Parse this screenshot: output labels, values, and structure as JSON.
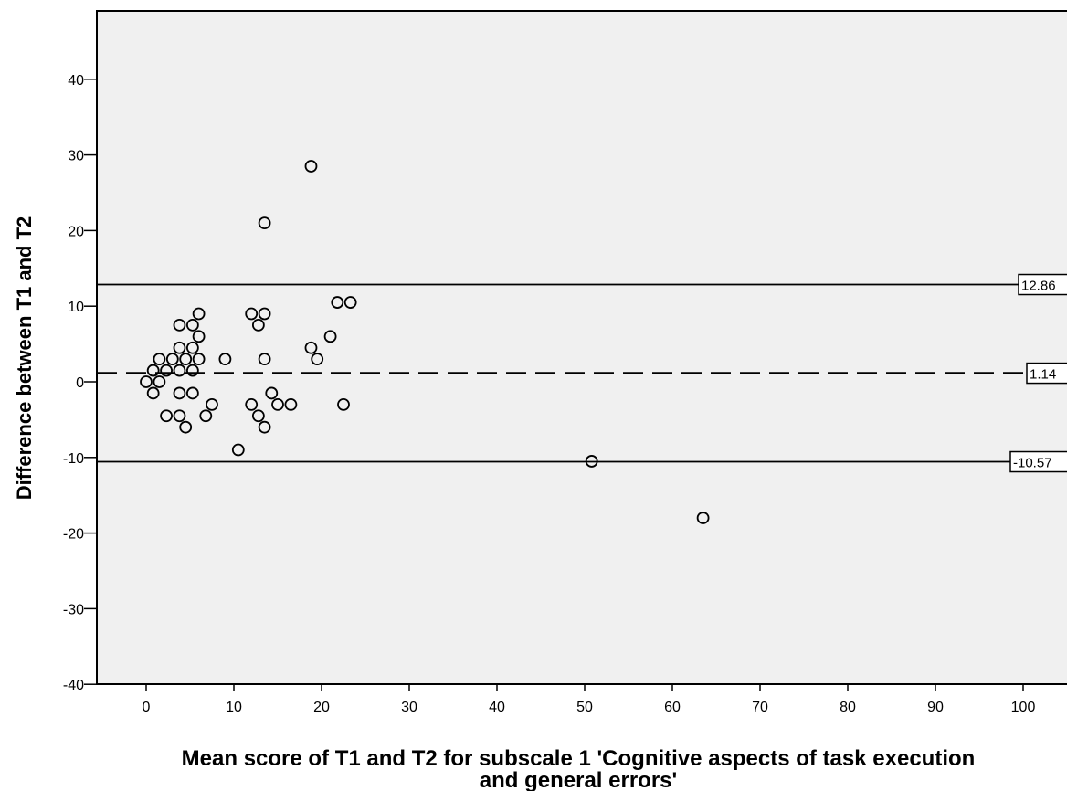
{
  "chart_data": {
    "type": "scatter",
    "title": "",
    "xlabel_lines": [
      "Mean score of T1 and T2 for subscale 1 'Cognitive aspects of task execution",
      "and general errors'"
    ],
    "ylabel": "Difference between T1 and T2",
    "xlim": [
      -5,
      105
    ],
    "ylim": [
      -40,
      49
    ],
    "x_ticks": [
      0,
      10,
      20,
      30,
      40,
      50,
      60,
      70,
      80,
      90,
      100
    ],
    "y_ticks": [
      -40,
      -30,
      -20,
      -10,
      0,
      10,
      20,
      30,
      40
    ],
    "grid": false,
    "reference_lines": [
      {
        "y": 12.86,
        "label": "12.86",
        "style": "solid"
      },
      {
        "y": 1.14,
        "label": "1.14",
        "style": "dashed"
      },
      {
        "y": -10.57,
        "label": "-10.57",
        "style": "solid"
      }
    ],
    "points": [
      [
        0.0,
        0.0
      ],
      [
        0.8,
        1.5
      ],
      [
        0.8,
        -1.5
      ],
      [
        1.5,
        0.0
      ],
      [
        1.5,
        3.0
      ],
      [
        2.3,
        1.5
      ],
      [
        2.3,
        -4.5
      ],
      [
        3.0,
        3.0
      ],
      [
        3.8,
        7.5
      ],
      [
        3.8,
        4.5
      ],
      [
        3.8,
        1.5
      ],
      [
        3.8,
        -1.5
      ],
      [
        3.8,
        -4.5
      ],
      [
        4.5,
        3.0
      ],
      [
        4.5,
        -6.0
      ],
      [
        5.3,
        7.5
      ],
      [
        5.3,
        4.5
      ],
      [
        5.3,
        1.5
      ],
      [
        5.3,
        -1.5
      ],
      [
        6.0,
        9.0
      ],
      [
        6.0,
        6.0
      ],
      [
        6.0,
        3.0
      ],
      [
        6.8,
        -4.5
      ],
      [
        7.5,
        -3.0
      ],
      [
        9.0,
        3.0
      ],
      [
        10.5,
        -9.0
      ],
      [
        12.0,
        9.0
      ],
      [
        12.0,
        -3.0
      ],
      [
        12.8,
        7.5
      ],
      [
        12.8,
        -4.5
      ],
      [
        13.5,
        21.0
      ],
      [
        13.5,
        9.0
      ],
      [
        13.5,
        3.0
      ],
      [
        13.5,
        -6.0
      ],
      [
        14.3,
        -1.5
      ],
      [
        15.0,
        -3.0
      ],
      [
        16.5,
        -3.0
      ],
      [
        18.8,
        28.5
      ],
      [
        18.8,
        4.5
      ],
      [
        19.5,
        3.0
      ],
      [
        21.0,
        6.0
      ],
      [
        21.8,
        10.5
      ],
      [
        22.5,
        -3.0
      ],
      [
        23.3,
        10.5
      ],
      [
        50.8,
        -10.5
      ],
      [
        63.5,
        -18.0
      ]
    ],
    "colors": {
      "plot_background": "#f0f0f0",
      "axis": "#000000",
      "marker": "#000000"
    }
  }
}
